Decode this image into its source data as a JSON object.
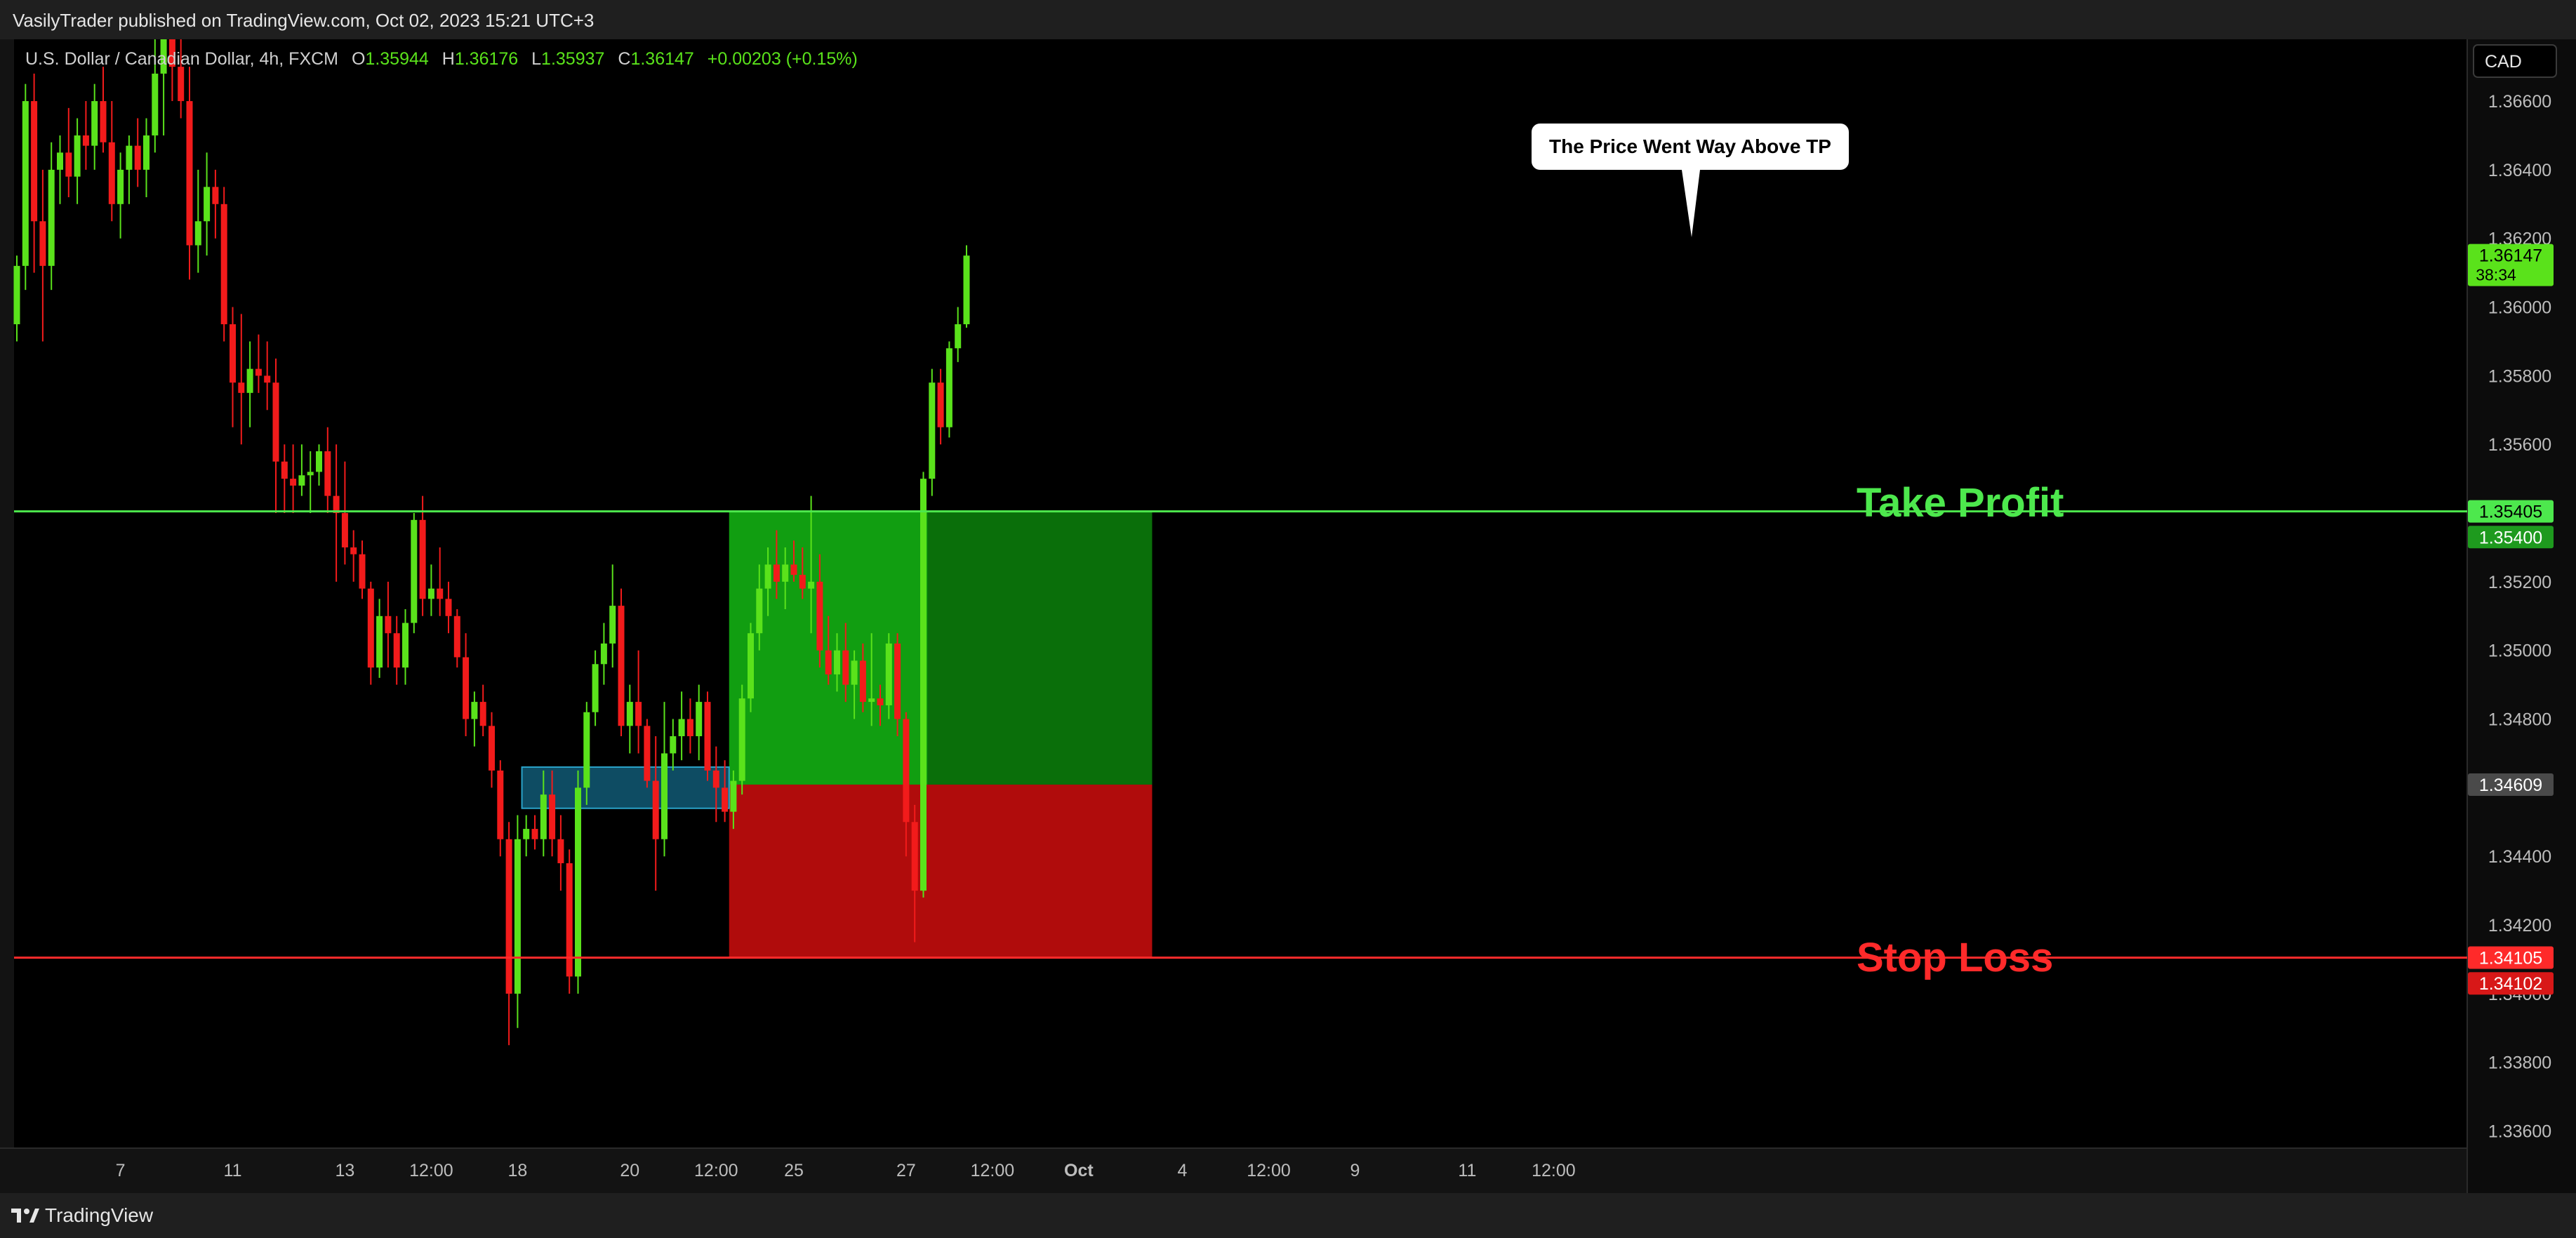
{
  "header": {
    "published": "VasilyTrader published on TradingView.com, Oct 02, 2023 15:21 UTC+3"
  },
  "footer": {
    "brand": "TradingView"
  },
  "colors": {
    "up": "#5ae21b",
    "down": "#f21b1b",
    "tp_zone": "#119e11",
    "sl_zone": "#b00c0c",
    "tp_line": "#4de84d",
    "sl_line": "#ff2a2a",
    "ob_zone": "#0e4c63"
  },
  "chart_data": {
    "type": "candlestick",
    "symbol_text": "U.S. Dollar / Canadian Dollar, 4h, FXCM",
    "ohlc": {
      "o_label": "O",
      "o": "1.35944",
      "h_label": "H",
      "h": "1.36176",
      "l_label": "L",
      "l": "1.35937",
      "c_label": "C",
      "c": "1.36147",
      "change": "+0.00203 (+0.15%)"
    },
    "currency_button": "CAD",
    "ylim": [
      1.3355,
      1.3678
    ],
    "y_ticks": [
      "1.36600",
      "1.36400",
      "1.36200",
      "1.36000",
      "1.35800",
      "1.35600",
      "1.35400",
      "1.35200",
      "1.35000",
      "1.34800",
      "1.34600",
      "1.34400",
      "1.34200",
      "1.34000",
      "1.33800",
      "1.33600"
    ],
    "x_ticks": [
      {
        "label": "7",
        "i": 12
      },
      {
        "label": "11",
        "i": 25
      },
      {
        "label": "13",
        "i": 38
      },
      {
        "label": "12:00",
        "i": 48
      },
      {
        "label": "18",
        "i": 58
      },
      {
        "label": "20",
        "i": 71
      },
      {
        "label": "12:00",
        "i": 81
      },
      {
        "label": "25",
        "i": 90
      },
      {
        "label": "27",
        "i": 103
      },
      {
        "label": "12:00",
        "i": 113
      },
      {
        "label": "Oct",
        "i": 123,
        "bold": true
      },
      {
        "label": "4",
        "i": 135
      },
      {
        "label": "12:00",
        "i": 145
      },
      {
        "label": "9",
        "i": 155
      },
      {
        "label": "11",
        "i": 168
      },
      {
        "label": "12:00",
        "i": 178
      }
    ],
    "candles": [
      [
        1.3595,
        1.3615,
        1.359,
        1.3612
      ],
      [
        1.3612,
        1.3665,
        1.3605,
        1.366
      ],
      [
        1.366,
        1.3668,
        1.361,
        1.3625
      ],
      [
        1.3625,
        1.364,
        1.359,
        1.3612
      ],
      [
        1.3612,
        1.3648,
        1.3605,
        1.364
      ],
      [
        1.364,
        1.365,
        1.363,
        1.3645
      ],
      [
        1.3645,
        1.3658,
        1.3632,
        1.3638
      ],
      [
        1.3638,
        1.3655,
        1.363,
        1.365
      ],
      [
        1.365,
        1.366,
        1.364,
        1.3647
      ],
      [
        1.3647,
        1.3665,
        1.364,
        1.366
      ],
      [
        1.366,
        1.367,
        1.3645,
        1.3648
      ],
      [
        1.3648,
        1.366,
        1.3625,
        1.363
      ],
      [
        1.363,
        1.3645,
        1.362,
        1.364
      ],
      [
        1.364,
        1.365,
        1.363,
        1.3647
      ],
      [
        1.3647,
        1.3655,
        1.3635,
        1.364
      ],
      [
        1.364,
        1.3655,
        1.3632,
        1.365
      ],
      [
        1.365,
        1.368,
        1.3645,
        1.3668
      ],
      [
        1.3668,
        1.369,
        1.365,
        1.368
      ],
      [
        1.368,
        1.369,
        1.366,
        1.367
      ],
      [
        1.367,
        1.3678,
        1.3655,
        1.366
      ],
      [
        1.366,
        1.367,
        1.3608,
        1.3618
      ],
      [
        1.3618,
        1.364,
        1.361,
        1.3625
      ],
      [
        1.3625,
        1.3645,
        1.3615,
        1.3635
      ],
      [
        1.3635,
        1.364,
        1.362,
        1.363
      ],
      [
        1.363,
        1.3635,
        1.359,
        1.3595
      ],
      [
        1.3595,
        1.36,
        1.3565,
        1.3578
      ],
      [
        1.3578,
        1.3598,
        1.356,
        1.3575
      ],
      [
        1.3575,
        1.359,
        1.3565,
        1.3582
      ],
      [
        1.3582,
        1.3592,
        1.3575,
        1.358
      ],
      [
        1.358,
        1.359,
        1.357,
        1.3578
      ],
      [
        1.3578,
        1.3585,
        1.354,
        1.3555
      ],
      [
        1.3555,
        1.356,
        1.354,
        1.355
      ],
      [
        1.355,
        1.356,
        1.354,
        1.3548
      ],
      [
        1.3548,
        1.356,
        1.3545,
        1.3551
      ],
      [
        1.3551,
        1.3558,
        1.354,
        1.3552
      ],
      [
        1.3552,
        1.356,
        1.3548,
        1.3558
      ],
      [
        1.3558,
        1.3565,
        1.354,
        1.3545
      ],
      [
        1.3545,
        1.356,
        1.352,
        1.354
      ],
      [
        1.354,
        1.3555,
        1.3525,
        1.353
      ],
      [
        1.353,
        1.3535,
        1.352,
        1.3528
      ],
      [
        1.3528,
        1.3532,
        1.3515,
        1.3518
      ],
      [
        1.3518,
        1.352,
        1.349,
        1.3495
      ],
      [
        1.3495,
        1.3515,
        1.3492,
        1.351
      ],
      [
        1.351,
        1.352,
        1.3495,
        1.3505
      ],
      [
        1.3505,
        1.351,
        1.349,
        1.3495
      ],
      [
        1.3495,
        1.3512,
        1.349,
        1.3508
      ],
      [
        1.3508,
        1.354,
        1.3505,
        1.3538
      ],
      [
        1.3538,
        1.3545,
        1.351,
        1.3515
      ],
      [
        1.3515,
        1.3525,
        1.351,
        1.3518
      ],
      [
        1.3518,
        1.353,
        1.351,
        1.3515
      ],
      [
        1.3515,
        1.352,
        1.3505,
        1.351
      ],
      [
        1.351,
        1.3512,
        1.3495,
        1.3498
      ],
      [
        1.3498,
        1.3505,
        1.3475,
        1.348
      ],
      [
        1.348,
        1.3488,
        1.3472,
        1.3485
      ],
      [
        1.3485,
        1.349,
        1.3475,
        1.3478
      ],
      [
        1.3478,
        1.3482,
        1.346,
        1.3465
      ],
      [
        1.3465,
        1.3468,
        1.344,
        1.3445
      ],
      [
        1.3445,
        1.345,
        1.3385,
        1.34
      ],
      [
        1.34,
        1.3452,
        1.339,
        1.3445
      ],
      [
        1.3445,
        1.3452,
        1.344,
        1.3448
      ],
      [
        1.3448,
        1.3452,
        1.3442,
        1.3445
      ],
      [
        1.3445,
        1.3465,
        1.344,
        1.3458
      ],
      [
        1.3458,
        1.3465,
        1.344,
        1.3445
      ],
      [
        1.3445,
        1.3452,
        1.343,
        1.3438
      ],
      [
        1.3438,
        1.3442,
        1.34,
        1.3405
      ],
      [
        1.3405,
        1.3465,
        1.34,
        1.346
      ],
      [
        1.346,
        1.3485,
        1.3455,
        1.3482
      ],
      [
        1.3482,
        1.35,
        1.3478,
        1.3496
      ],
      [
        1.3496,
        1.3508,
        1.349,
        1.3502
      ],
      [
        1.3502,
        1.3525,
        1.3495,
        1.3513
      ],
      [
        1.3513,
        1.3518,
        1.3475,
        1.3478
      ],
      [
        1.3478,
        1.349,
        1.347,
        1.3485
      ],
      [
        1.3485,
        1.35,
        1.347,
        1.3478
      ],
      [
        1.3478,
        1.348,
        1.346,
        1.3462
      ],
      [
        1.3462,
        1.3475,
        1.343,
        1.3445
      ],
      [
        1.3445,
        1.3485,
        1.344,
        1.347
      ],
      [
        1.347,
        1.348,
        1.3465,
        1.3475
      ],
      [
        1.3475,
        1.3488,
        1.3468,
        1.348
      ],
      [
        1.348,
        1.3486,
        1.347,
        1.3475
      ],
      [
        1.3475,
        1.349,
        1.3468,
        1.3485
      ],
      [
        1.3485,
        1.3488,
        1.3462,
        1.3465
      ],
      [
        1.3465,
        1.3472,
        1.345,
        1.346
      ],
      [
        1.346,
        1.3468,
        1.345,
        1.3453
      ],
      [
        1.3453,
        1.3465,
        1.3448,
        1.3462
      ],
      [
        1.3462,
        1.349,
        1.3458,
        1.3486
      ],
      [
        1.3486,
        1.3508,
        1.3482,
        1.3505
      ],
      [
        1.3505,
        1.3525,
        1.35,
        1.3518
      ],
      [
        1.3518,
        1.353,
        1.351,
        1.3525
      ],
      [
        1.3525,
        1.3535,
        1.3515,
        1.352
      ],
      [
        1.352,
        1.353,
        1.3512,
        1.3525
      ],
      [
        1.3525,
        1.3532,
        1.352,
        1.3522
      ],
      [
        1.3522,
        1.353,
        1.3515,
        1.3518
      ],
      [
        1.3518,
        1.3545,
        1.3505,
        1.352
      ],
      [
        1.352,
        1.3528,
        1.3495,
        1.35
      ],
      [
        1.35,
        1.351,
        1.349,
        1.3493
      ],
      [
        1.3493,
        1.3505,
        1.3488,
        1.35
      ],
      [
        1.35,
        1.3508,
        1.3485,
        1.349
      ],
      [
        1.349,
        1.35,
        1.348,
        1.3497
      ],
      [
        1.3497,
        1.3502,
        1.3482,
        1.3485
      ],
      [
        1.3485,
        1.3505,
        1.3478,
        1.3486
      ],
      [
        1.3486,
        1.349,
        1.3478,
        1.3484
      ],
      [
        1.3484,
        1.3505,
        1.348,
        1.3502
      ],
      [
        1.3502,
        1.3505,
        1.3475,
        1.348
      ],
      [
        1.348,
        1.3482,
        1.344,
        1.345
      ],
      [
        1.345,
        1.3455,
        1.3415,
        1.343
      ],
      [
        1.343,
        1.3552,
        1.3428,
        1.355
      ],
      [
        1.355,
        1.3582,
        1.3545,
        1.3578
      ],
      [
        1.3578,
        1.3582,
        1.356,
        1.3565
      ],
      [
        1.3565,
        1.359,
        1.3562,
        1.3588
      ],
      [
        1.3588,
        1.36,
        1.3584,
        1.3595
      ],
      [
        1.3595,
        1.3618,
        1.3594,
        1.3615
      ]
    ],
    "lines": [
      {
        "name": "take-profit-line",
        "price": 1.35405,
        "color": "tp_line"
      },
      {
        "name": "stop-loss-line",
        "price": 1.34105,
        "color": "sl_line"
      }
    ],
    "zones": {
      "entry": 1.34609,
      "take_profit": 1.35405,
      "stop_loss": 1.34105,
      "start_i": 82.5,
      "end_i": 131.5,
      "bright_end_i": 105.5
    },
    "order_block": {
      "top": 1.3466,
      "bottom": 1.3454,
      "start_i": 58.5,
      "end_i": 82.5
    },
    "price_labels": [
      {
        "name": "last-price-label",
        "value": "1.36147",
        "sub": "38:34",
        "price": 1.36147,
        "bg": "#5ae21b",
        "fg": "#000000"
      },
      {
        "name": "tp-price-label",
        "value": "1.35405",
        "price": 1.35405,
        "bg": "#4de84d",
        "fg": "#000000"
      },
      {
        "name": "tp2-price-label",
        "value": "1.35400",
        "price": 1.3533,
        "bg": "#1e9a1e",
        "fg": "#ffffff"
      },
      {
        "name": "entry-price-label",
        "value": "1.34609",
        "price": 1.34609,
        "bg": "#4a4a4a",
        "fg": "#ffffff"
      },
      {
        "name": "sl-price-label",
        "value": "1.34105",
        "price": 1.34105,
        "bg": "#ff2a2a",
        "fg": "#ffffff"
      },
      {
        "name": "sl2-price-label",
        "value": "1.34102",
        "price": 1.3403,
        "bg": "#d81818",
        "fg": "#ffffff"
      }
    ],
    "annotations": {
      "tp_text": "Take Profit",
      "sl_text": "Stop Loss",
      "callout": "The Price Went Way Above TP"
    }
  }
}
